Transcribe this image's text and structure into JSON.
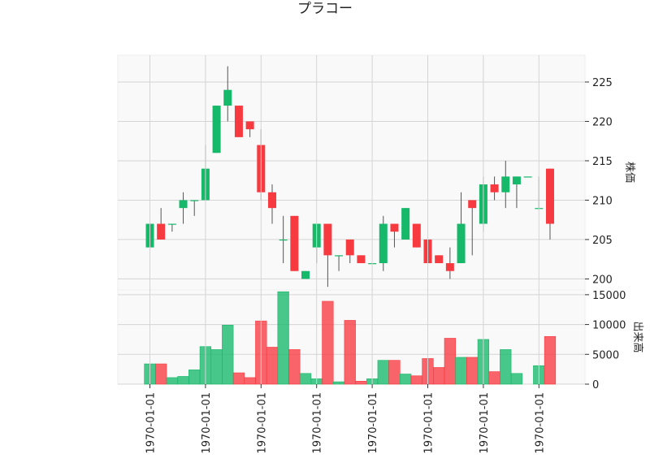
{
  "title": "プラコー",
  "chart_data": [
    {
      "type": "candlestick",
      "ylabel": "株価",
      "ylim": [
        198.6,
        228.4
      ],
      "yticks": [
        200,
        205,
        210,
        215,
        220,
        225
      ],
      "grid": true,
      "colors": {
        "up": "#16b86a",
        "down": "#f73a40",
        "wick": "#555555"
      },
      "candles": [
        {
          "open": 204,
          "high": 207,
          "low": 204,
          "close": 207
        },
        {
          "open": 207,
          "high": 209,
          "low": 205,
          "close": 205
        },
        {
          "open": 207,
          "high": 207,
          "low": 206,
          "close": 207
        },
        {
          "open": 209,
          "high": 211,
          "low": 207,
          "close": 210
        },
        {
          "open": 210,
          "high": 210,
          "low": 208,
          "close": 210
        },
        {
          "open": 210,
          "high": 217,
          "low": 210,
          "close": 214
        },
        {
          "open": 216,
          "high": 222,
          "low": 216,
          "close": 222
        },
        {
          "open": 222,
          "high": 227,
          "low": 220,
          "close": 224
        },
        {
          "open": 222,
          "high": 222,
          "low": 218,
          "close": 218
        },
        {
          "open": 220,
          "high": 220,
          "low": 218,
          "close": 219
        },
        {
          "open": 217,
          "high": 219,
          "low": 210,
          "close": 211
        },
        {
          "open": 211,
          "high": 212,
          "low": 207,
          "close": 209
        },
        {
          "open": 205,
          "high": 208,
          "low": 202,
          "close": 205
        },
        {
          "open": 208,
          "high": 208,
          "low": 201,
          "close": 201
        },
        {
          "open": 200,
          "high": 201,
          "low": 200,
          "close": 201
        },
        {
          "open": 204,
          "high": 207,
          "low": 202,
          "close": 207
        },
        {
          "open": 207,
          "high": 207,
          "low": 199,
          "close": 203
        },
        {
          "open": 203,
          "high": 203,
          "low": 201,
          "close": 203
        },
        {
          "open": 205,
          "high": 205,
          "low": 202,
          "close": 203
        },
        {
          "open": 203,
          "high": 203,
          "low": 202,
          "close": 202
        },
        {
          "open": 202,
          "high": 202,
          "low": 202,
          "close": 202
        },
        {
          "open": 202,
          "high": 208,
          "low": 201,
          "close": 207
        },
        {
          "open": 207,
          "high": 207,
          "low": 204,
          "close": 206
        },
        {
          "open": 205,
          "high": 209,
          "low": 205,
          "close": 209
        },
        {
          "open": 207,
          "high": 207,
          "low": 204,
          "close": 204
        },
        {
          "open": 205,
          "high": 206,
          "low": 202,
          "close": 202
        },
        {
          "open": 203,
          "high": 203,
          "low": 202,
          "close": 202
        },
        {
          "open": 202,
          "high": 204,
          "low": 200,
          "close": 201
        },
        {
          "open": 202,
          "high": 211,
          "low": 202,
          "close": 207
        },
        {
          "open": 210,
          "high": 210,
          "low": 203,
          "close": 209
        },
        {
          "open": 207,
          "high": 213,
          "low": 206,
          "close": 212
        },
        {
          "open": 212,
          "high": 213,
          "low": 210,
          "close": 211
        },
        {
          "open": 211,
          "high": 215,
          "low": 209,
          "close": 213
        },
        {
          "open": 212,
          "high": 213,
          "low": 209,
          "close": 213
        },
        {
          "open": 213,
          "high": 213,
          "low": 213,
          "close": 213
        },
        {
          "open": 209,
          "high": 213,
          "low": 209,
          "close": 209
        },
        {
          "open": 214,
          "high": 214,
          "low": 205,
          "close": 207
        }
      ]
    },
    {
      "type": "bar",
      "ylabel": "出来高",
      "ylim": [
        0,
        15800
      ],
      "yticks": [
        0,
        5000,
        10000,
        15000
      ],
      "yticklabels": [
        "0",
        "5000",
        "10000",
        "15000"
      ],
      "grid": true,
      "colors": {
        "up": "#16b86a",
        "down": "#f73a40"
      },
      "volumes": [
        3400,
        3400,
        1100,
        1300,
        2400,
        6300,
        5800,
        9900,
        1900,
        1100,
        10600,
        6200,
        15500,
        5800,
        1800,
        900,
        13900,
        400,
        10700,
        500,
        900,
        4000,
        4000,
        1700,
        1400,
        4300,
        2800,
        7700,
        4500,
        4500,
        7500,
        2100,
        5800,
        1800,
        0,
        3100,
        8000
      ],
      "xticklabels": [
        "1970-01-01",
        "1970-01-01",
        "1970-01-01",
        "1970-01-01",
        "1970-01-01",
        "1970-01-01",
        "1970-01-01",
        "1970-01-01"
      ]
    }
  ]
}
